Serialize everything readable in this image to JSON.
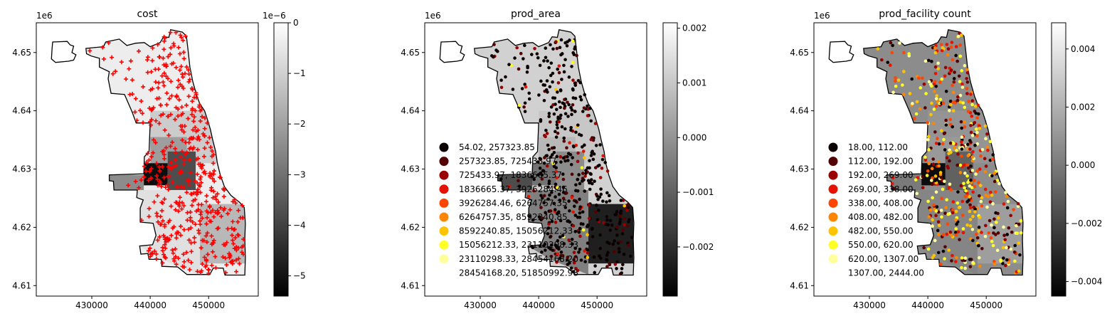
{
  "figure": {
    "background": "#ffffff"
  },
  "chart_data": [
    {
      "type": "map",
      "title": "cost",
      "x_ticks": [
        "430000",
        "440000",
        "450000"
      ],
      "y_ticks": [
        "4.61",
        "4.62",
        "4.63",
        "4.64",
        "4.65"
      ],
      "y_offset_label": "1e6",
      "xlim": [
        420500,
        458500
      ],
      "ylim": [
        4608200,
        4655100
      ],
      "colorbar": {
        "cmap": "gray",
        "range": [
          -5.4e-06,
          0
        ],
        "ticks": [
          0,
          -1e-06,
          -2e-06,
          -3e-06,
          -4e-06,
          -5e-06
        ],
        "tick_labels": [
          "0",
          "−1",
          "−2",
          "−3",
          "−4",
          "−5"
        ],
        "offset_label": "1e−6"
      },
      "point_marker": "+",
      "point_color": "#ff0000",
      "region_shades": [
        0.93,
        0.8,
        0.62,
        0.3,
        0.05,
        0.55,
        0.72,
        0.88
      ]
    },
    {
      "type": "map",
      "title": "prod_area",
      "x_ticks": [
        "430000",
        "440000",
        "450000"
      ],
      "y_ticks": [
        "4.61",
        "4.62",
        "4.63",
        "4.64",
        "4.65"
      ],
      "y_offset_label": "1e6",
      "xlim": [
        420500,
        458500
      ],
      "ylim": [
        4608200,
        4655100
      ],
      "colorbar": {
        "cmap": "gray",
        "range": [
          -0.0029,
          0.0021
        ],
        "ticks": [
          0.002,
          0.001,
          0.0,
          -0.001,
          -0.002
        ],
        "tick_labels": [
          "0.002",
          "0.001",
          "0.000",
          "−0.001",
          "−0.002"
        ]
      },
      "point_marker": "o",
      "legend": [
        {
          "label": "54.02,   257323.85",
          "color": "#0b0000"
        },
        {
          "label": "257323.85,   725433.97",
          "color": "#550000"
        },
        {
          "label": "725433.97, 1836665.37",
          "color": "#9a0000"
        },
        {
          "label": "1836665.37,  3926284.46",
          "color": "#e31300"
        },
        {
          "label": "3926284.46,  6264757.35",
          "color": "#ff4500"
        },
        {
          "label": "6264757.35,  8592240.85",
          "color": "#ff8600"
        },
        {
          "label": "8592240.85, 15056212.33",
          "color": "#ffc400"
        },
        {
          "label": "15056212.33, 23110298.33",
          "color": "#ffff26"
        },
        {
          "label": "23110298.33, 28454168.20",
          "color": "#ffff9c"
        },
        {
          "label": "28454168.20, 51850992.98",
          "color": "#ffffff"
        }
      ],
      "region_shades": [
        0.82,
        0.78,
        0.72,
        0.55,
        0.45,
        0.3,
        0.12,
        0.5
      ]
    },
    {
      "type": "map",
      "title": "prod_facility count",
      "x_ticks": [
        "430000",
        "440000",
        "450000"
      ],
      "y_ticks": [
        "4.61",
        "4.62",
        "4.63",
        "4.64",
        "4.65"
      ],
      "y_offset_label": "1e6",
      "xlim": [
        420500,
        458500
      ],
      "ylim": [
        4608200,
        4655100
      ],
      "colorbar": {
        "cmap": "gray",
        "range": [
          -0.0045,
          0.0049
        ],
        "ticks": [
          0.004,
          0.002,
          0.0,
          -0.002,
          -0.004
        ],
        "tick_labels": [
          "0.004",
          "0.002",
          "0.000",
          "−0.002",
          "−0.004"
        ]
      },
      "point_marker": "o",
      "legend": [
        {
          "label": "18.00,  112.00",
          "color": "#0b0000"
        },
        {
          "label": "112.00,  192.00",
          "color": "#550000"
        },
        {
          "label": "192.00,  269.00",
          "color": "#9a0000"
        },
        {
          "label": "269.00,  338.00",
          "color": "#e31300"
        },
        {
          "label": "338.00,  408.00",
          "color": "#ff4500"
        },
        {
          "label": "408.00,  482.00",
          "color": "#ff8600"
        },
        {
          "label": "482.00,  550.00",
          "color": "#ffc400"
        },
        {
          "label": "550.00,  620.00",
          "color": "#ffff26"
        },
        {
          "label": "620.00, 1307.00",
          "color": "#ffff9c"
        },
        {
          "label": "1307.00, 2444.00",
          "color": "#ffffff"
        }
      ],
      "region_shades": [
        0.55,
        0.58,
        0.6,
        0.38,
        0.05,
        0.48,
        0.62,
        0.52
      ]
    }
  ]
}
